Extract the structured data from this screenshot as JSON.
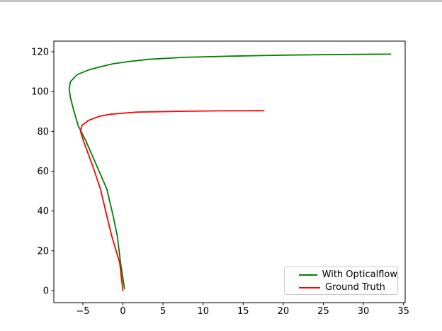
{
  "window": {
    "top_edge_color": "#c3c3c3"
  },
  "chart_data": {
    "type": "line",
    "title": "",
    "xlabel": "",
    "ylabel": "",
    "grid": false,
    "background": "#ffffff",
    "spine_color": "#000000",
    "xlim": [
      -8.62,
      35.21
    ],
    "ylim": [
      -6.05,
      125.36
    ],
    "x_ticks": [
      -5,
      0,
      5,
      10,
      15,
      20,
      25,
      30,
      35
    ],
    "x_tick_labels": [
      "−5",
      "0",
      "5",
      "10",
      "15",
      "20",
      "25",
      "30",
      "35"
    ],
    "y_ticks": [
      0,
      20,
      40,
      60,
      80,
      100,
      120
    ],
    "y_tick_labels": [
      "0",
      "20",
      "40",
      "60",
      "80",
      "100",
      "120"
    ],
    "legend_position": "lower right",
    "series": [
      {
        "name": "With Opticalflow",
        "color": "#008000",
        "points": [
          [
            0.2,
            1
          ],
          [
            -0.3,
            14
          ],
          [
            -0.7,
            27.5
          ],
          [
            -1.3,
            39
          ],
          [
            -2.0,
            51
          ],
          [
            -3.3,
            63
          ],
          [
            -4.6,
            75
          ],
          [
            -5.6,
            83
          ],
          [
            -6.2,
            91.5
          ],
          [
            -6.55,
            97
          ],
          [
            -6.7,
            101.5
          ],
          [
            -6.55,
            105
          ],
          [
            -5.7,
            108.5
          ],
          [
            -4.2,
            111
          ],
          [
            -3.0,
            112.3
          ],
          [
            -1.2,
            114
          ],
          [
            1.0,
            115.2
          ],
          [
            3.2,
            116.2
          ],
          [
            7.6,
            117.2
          ],
          [
            13.6,
            117.8
          ],
          [
            20.0,
            118.3
          ],
          [
            26.0,
            118.6
          ],
          [
            33.4,
            118.8
          ]
        ]
      },
      {
        "name": "Ground Truth",
        "color": "#ff0000",
        "points": [
          [
            0.0,
            0
          ],
          [
            -0.4,
            14
          ],
          [
            -1.4,
            27.5
          ],
          [
            -2.1,
            39
          ],
          [
            -2.8,
            51
          ],
          [
            -3.8,
            63
          ],
          [
            -4.9,
            75
          ],
          [
            -5.3,
            80
          ],
          [
            -5.1,
            83
          ],
          [
            -4.3,
            85.5
          ],
          [
            -3.0,
            87.5
          ],
          [
            -1.6,
            88.6
          ],
          [
            1.8,
            89.7
          ],
          [
            7.6,
            90.1
          ],
          [
            12.0,
            90.3
          ],
          [
            17.6,
            90.4
          ]
        ]
      }
    ]
  }
}
